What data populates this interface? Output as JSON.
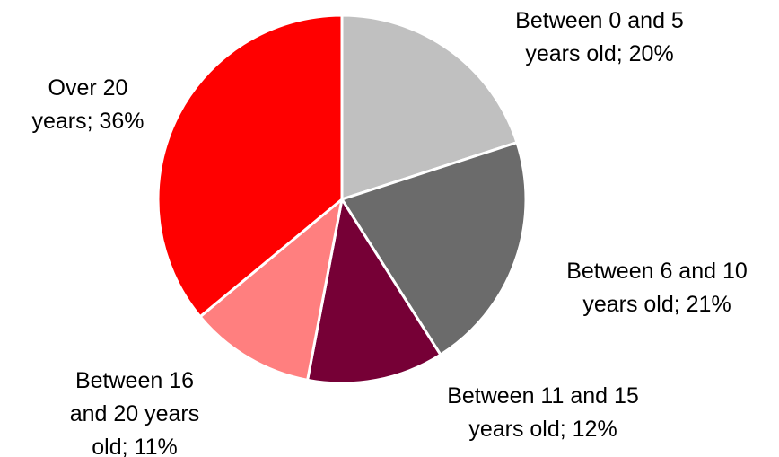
{
  "chart_data": {
    "type": "pie",
    "title": "",
    "start_angle_deg": 0,
    "direction": "clockwise",
    "slices": [
      {
        "label": "Between 0 and 5 years old",
        "value": 20,
        "color": "#c0c0c0",
        "label_lines": [
          "Between 0 and 5",
          "years old; 20%"
        ]
      },
      {
        "label": "Between 6 and 10 years old",
        "value": 21,
        "color": "#6b6b6b",
        "label_lines": [
          "Between 6 and 10",
          "years old; 21%"
        ]
      },
      {
        "label": "Between 11 and 15 years old",
        "value": 12,
        "color": "#760036",
        "label_lines": [
          "Between 11 and 15",
          "years old; 12%"
        ]
      },
      {
        "label": "Between 16 and 20 years old",
        "value": 11,
        "color": "#ff7f7f",
        "label_lines": [
          "Between 16",
          "and 20 years",
          "old; 11%"
        ]
      },
      {
        "label": "Over 20 years",
        "value": 36,
        "color": "#ff0000",
        "label_lines": [
          "Over 20",
          "years; 36%"
        ]
      }
    ]
  }
}
